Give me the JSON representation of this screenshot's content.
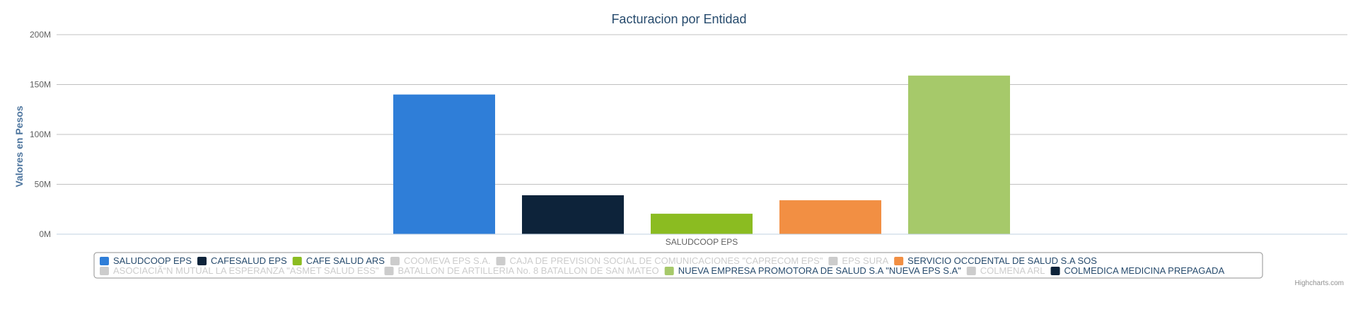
{
  "chart_data": {
    "type": "bar",
    "title": "Facturacion por Entidad",
    "ylabel": "Valores en Pesos",
    "xlabel": "",
    "categories": [
      "SALUDCOOP EPS"
    ],
    "ylim": [
      0,
      200000000
    ],
    "yticks": [
      0,
      50000000,
      100000000,
      150000000,
      200000000
    ],
    "ytick_labels": [
      "0M",
      "50M",
      "100M",
      "150M",
      "200M"
    ],
    "grid": true,
    "legend_position": "bottom-center",
    "series": [
      {
        "name": "SALUDCOOP EPS",
        "color": "#2f7ed8",
        "visible": true,
        "values": [
          140000000
        ]
      },
      {
        "name": "CAFESALUD EPS",
        "color": "#0d233a",
        "visible": true,
        "values": [
          39000000
        ]
      },
      {
        "name": "CAFE SALUD ARS",
        "color": "#8bbc21",
        "visible": true,
        "values": [
          20500000
        ]
      },
      {
        "name": "COOMEVA EPS S.A.",
        "color": "#910000",
        "visible": false,
        "values": [
          null
        ]
      },
      {
        "name": "CAJA DE PREVISION SOCIAL DE COMUNICACIONES \"CAPRECOM EPS\"",
        "color": "#1aadce",
        "visible": false,
        "values": [
          null
        ]
      },
      {
        "name": "EPS SURA",
        "color": "#492970",
        "visible": false,
        "values": [
          null
        ]
      },
      {
        "name": "SERVICIO OCCDENTAL DE SALUD S.A SOS",
        "color": "#f28f43",
        "visible": true,
        "values": [
          34000000
        ]
      },
      {
        "name": "ASOCIACIÃ“N MUTUAL LA ESPERANZA \"ASMET SALUD ESS\"",
        "color": "#77a1e5",
        "visible": false,
        "values": [
          null
        ]
      },
      {
        "name": "BATALLON DE ARTILLERIA No. 8 BATALLON DE SAN MATEO",
        "color": "#c42525",
        "visible": false,
        "values": [
          null
        ]
      },
      {
        "name": "NUEVA EMPRESA PROMOTORA DE SALUD S.A \"NUEVA EPS S.A\"",
        "color": "#a6c96a",
        "visible": true,
        "values": [
          159000000
        ]
      },
      {
        "name": "COLMENA ARL",
        "color": "#2f7ed8",
        "visible": false,
        "values": [
          null
        ]
      },
      {
        "name": "COLMEDICA MEDICINA PREPAGADA",
        "color": "#0d233a",
        "visible": true,
        "values": [
          null
        ]
      }
    ],
    "hidden_color": "#cccccc",
    "credits": "Highcharts.com"
  }
}
